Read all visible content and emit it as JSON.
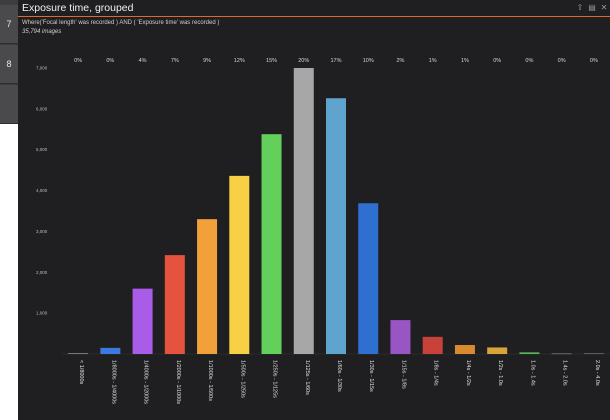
{
  "sidebar": {
    "items": [
      {
        "label": "7"
      },
      {
        "label": "8"
      },
      {
        "label": ""
      }
    ]
  },
  "window": {
    "title": "Exposure time, grouped",
    "filter": "Where('Focal length' was recorded ) AND ( 'Exposure time' was recorded )",
    "count": "35,794 images",
    "toolbar_icons": [
      "share-icon",
      "save-icon",
      "close-icon"
    ]
  },
  "chart_data": {
    "type": "bar",
    "title": "",
    "categories": [
      "< 1/8000s",
      "1/8000s - 1/4000s",
      "1/4000s - 1/2000s",
      "1/2000s - 1/1000s",
      "1/1000s - 1/500s",
      "1/500s - 1/250s",
      "1/250s - 1/125s",
      "1/125s - 1/60s",
      "1/60s - 1/30s",
      "1/30s - 1/15s",
      "1/15s - 1/8s",
      "1/8s - 1/4s",
      "1/4s - 1/2s",
      "1/2s - 1.0s",
      "1.0s - 1.4s",
      "1.4s - 2.0s",
      "2.0s - 4.0s"
    ],
    "values": [
      20,
      150,
      1600,
      2420,
      3300,
      4360,
      5380,
      7000,
      6260,
      3690,
      830,
      420,
      220,
      160,
      40,
      15,
      20
    ],
    "percent_labels": [
      "0%",
      "0%",
      "4%",
      "7%",
      "9%",
      "12%",
      "15%",
      "20%",
      "17%",
      "10%",
      "2%",
      "1%",
      "1%",
      "0%",
      "0%",
      "0%",
      "0%"
    ],
    "colors": [
      "#8a8a8a",
      "#3b7be0",
      "#a95ce8",
      "#e5533f",
      "#f2a03a",
      "#f7d046",
      "#62d05a",
      "#a7a7a7",
      "#5fa4cf",
      "#2f6fd0",
      "#9a55c4",
      "#c9423a",
      "#d98a30",
      "#d8a43a",
      "#5ab85a",
      "#7a7a7a",
      "#6a6a6a"
    ],
    "yticks": [
      1000,
      2000,
      3000,
      4000,
      5000,
      6000,
      7000
    ],
    "ytick_labels": [
      "1,000",
      "2,000",
      "3,000",
      "4,000",
      "5,000",
      "6,000",
      "7,000"
    ],
    "ylim": [
      0,
      7000
    ],
    "xlabel": "",
    "ylabel": "",
    "grid": false,
    "legend": "none"
  }
}
